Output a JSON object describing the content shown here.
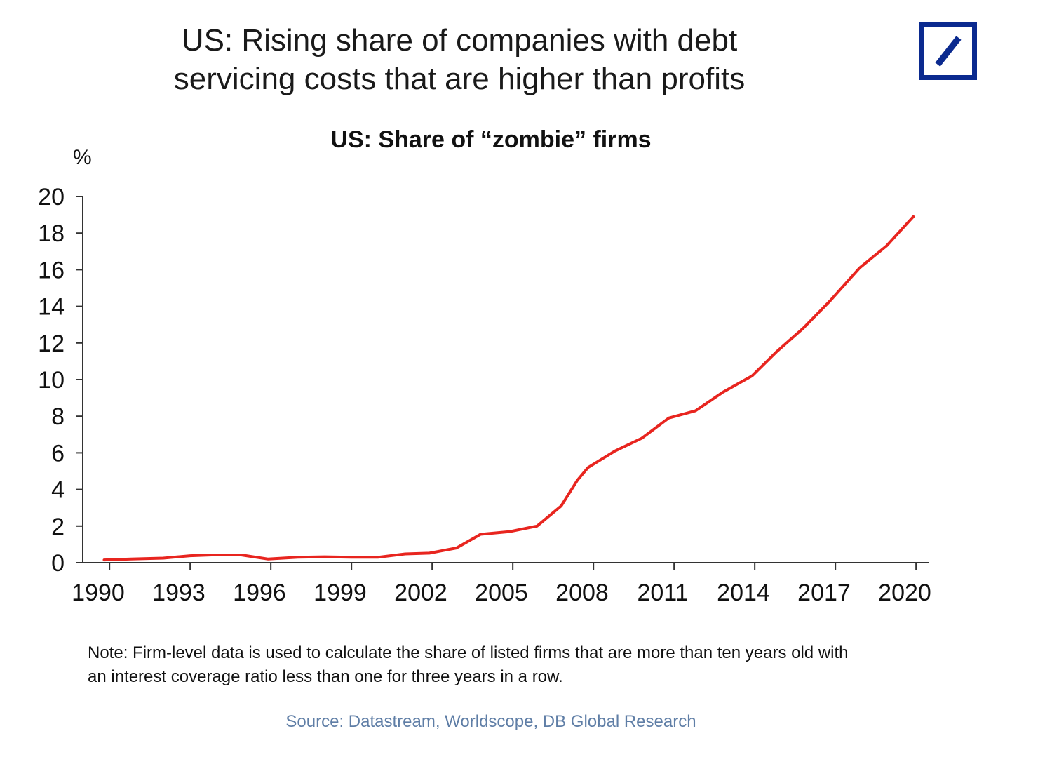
{
  "header": {
    "title_line1": "US: Rising share of companies with debt",
    "title_line2": "servicing costs that are higher than profits",
    "logo_color": "#0b2a8f"
  },
  "chart_data": {
    "type": "line",
    "title": "US: Share of “zombie” firms",
    "ylabel": "%",
    "xlabel": "",
    "ylim": [
      0,
      20
    ],
    "yticks": [
      "0",
      "2",
      "4",
      "6",
      "8",
      "10",
      "12",
      "14",
      "16",
      "18",
      "20"
    ],
    "xlim": [
      1990,
      2020.5
    ],
    "xticks": [
      "1990",
      "1993",
      "1996",
      "1999",
      "2002",
      "2005",
      "2008",
      "2011",
      "2014",
      "2017",
      "2020"
    ],
    "grid": false,
    "series": [
      {
        "name": "Share of zombie firms",
        "color": "#e8251f",
        "x": [
          1990.3,
          1991.3,
          1992.5,
          1993.5,
          1994.3,
          1995.4,
          1996.4,
          1997.5,
          1998.5,
          1999.5,
          2000.5,
          2001.5,
          2002.4,
          2003.4,
          2004.3,
          2005.4,
          2006.4,
          2007.3,
          2007.9,
          2008.3,
          2009.3,
          2010.3,
          2011.3,
          2012.3,
          2013.3,
          2014.4,
          2015.3,
          2016.3,
          2017.3,
          2018.4,
          2019.4,
          2020.4
        ],
        "values": [
          0.15,
          0.2,
          0.25,
          0.38,
          0.42,
          0.42,
          0.2,
          0.3,
          0.32,
          0.3,
          0.3,
          0.48,
          0.52,
          0.8,
          1.55,
          1.7,
          2.0,
          3.1,
          4.5,
          5.2,
          6.1,
          6.8,
          7.9,
          8.3,
          9.3,
          10.2,
          11.5,
          12.8,
          14.3,
          16.1,
          17.3,
          18.9
        ]
      }
    ]
  },
  "footer": {
    "note_line1": "Note: Firm-level data is used to calculate the share of listed firms that are more than ten years old with",
    "note_line2": "an interest coverage ratio less than one for three years in a row.",
    "source": "Source: Datastream, Worldscope, DB Global Research",
    "source_color": "#5f7ea6"
  }
}
